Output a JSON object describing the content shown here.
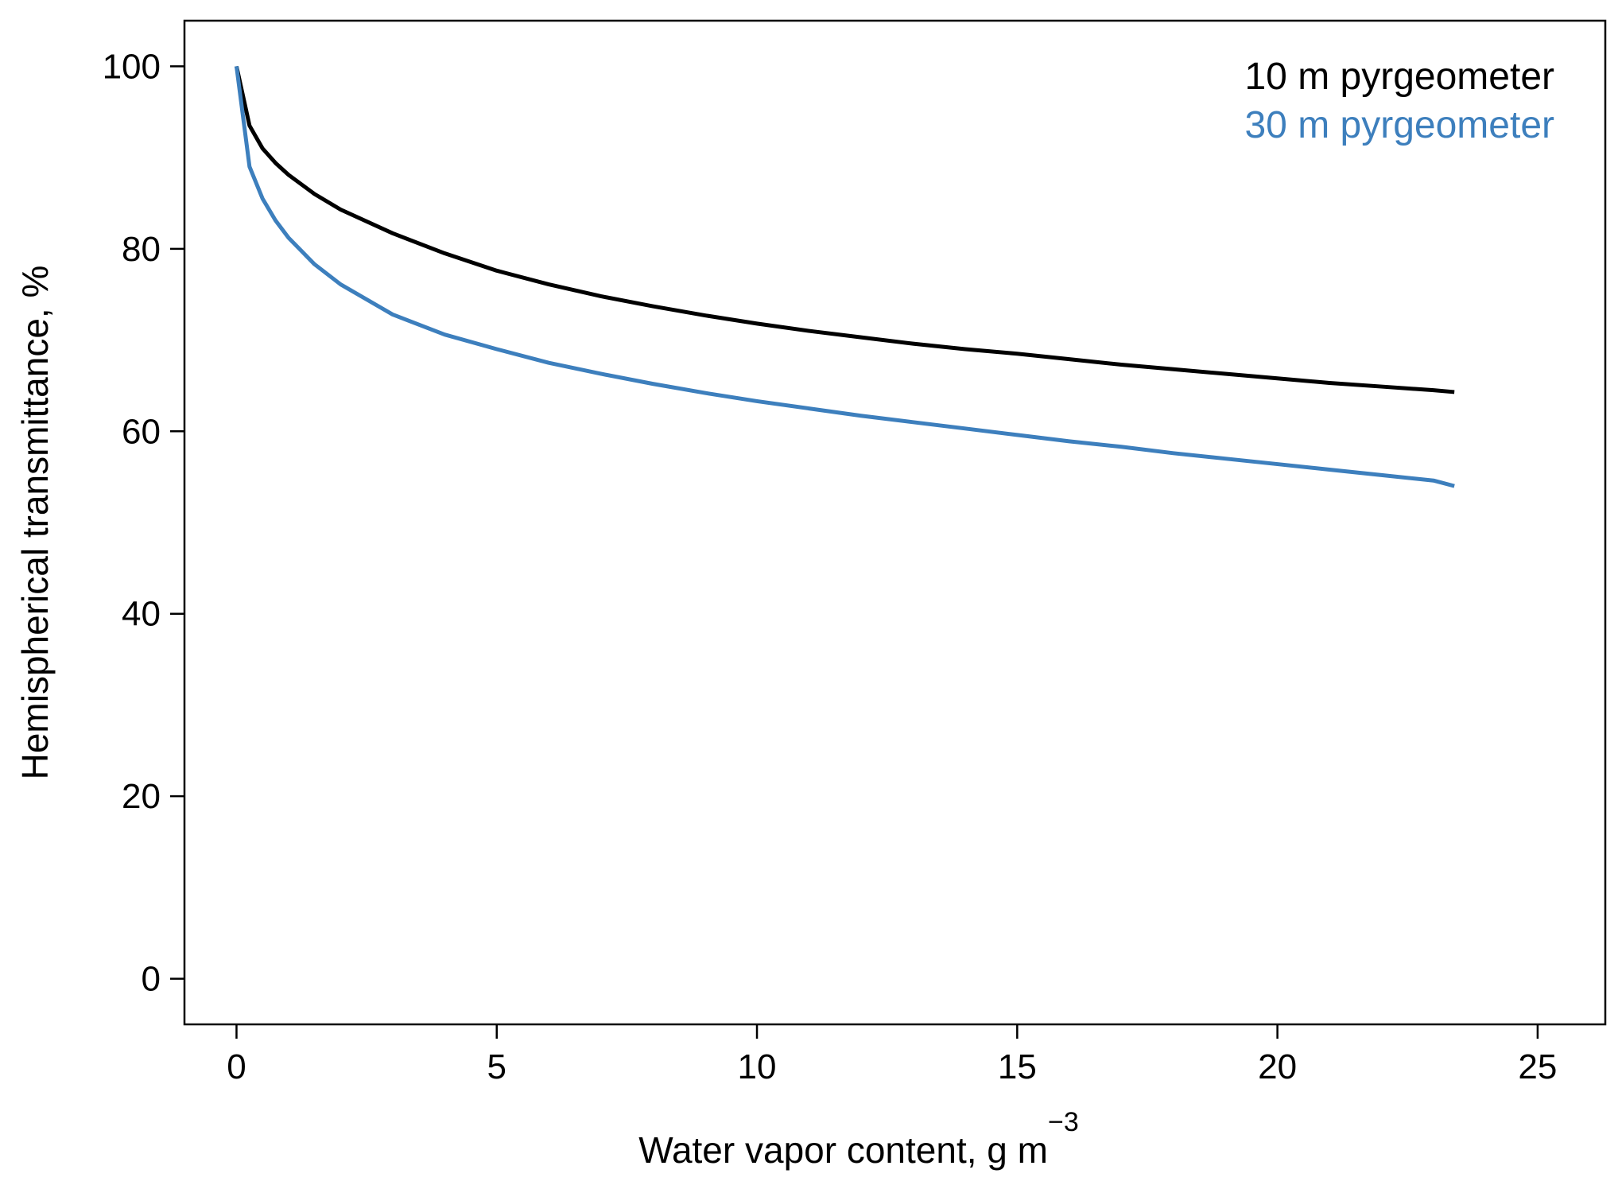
{
  "chart_data": {
    "type": "line",
    "title": "",
    "xlabel": "Water vapor content, g m",
    "xlabel_superscript": "−3",
    "ylabel": "Hemispherical transmittance, %",
    "xlim": [
      -1,
      26.3
    ],
    "ylim": [
      -5,
      105
    ],
    "x_ticks": [
      0,
      5,
      10,
      15,
      20,
      25
    ],
    "y_ticks": [
      0,
      20,
      40,
      60,
      80,
      100
    ],
    "x_tick_labels": [
      "0",
      "5",
      "10",
      "15",
      "20",
      "25"
    ],
    "y_tick_labels": [
      "0",
      "20",
      "40",
      "60",
      "80",
      "100"
    ],
    "grid": false,
    "legend_position": "top-right",
    "series": [
      {
        "name": "10 m pyrgeometer",
        "color": "#000000",
        "x": [
          0,
          0.25,
          0.5,
          0.75,
          1,
          1.5,
          2,
          3,
          4,
          5,
          6,
          7,
          8,
          9,
          10,
          11,
          12,
          13,
          14,
          15,
          16,
          17,
          18,
          19,
          20,
          21,
          22,
          23,
          23.4
        ],
        "y": [
          100,
          93.5,
          91.0,
          89.4,
          88.1,
          86.0,
          84.3,
          81.7,
          79.5,
          77.6,
          76.1,
          74.8,
          73.7,
          72.7,
          71.8,
          71.0,
          70.3,
          69.6,
          69.0,
          68.5,
          67.9,
          67.3,
          66.8,
          66.3,
          65.8,
          65.3,
          64.9,
          64.5,
          64.3
        ]
      },
      {
        "name": "30 m pyrgeometer",
        "color": "#3d7fbd",
        "x": [
          0,
          0.25,
          0.5,
          0.75,
          1,
          1.5,
          2,
          3,
          4,
          5,
          6,
          7,
          8,
          9,
          10,
          11,
          12,
          13,
          14,
          15,
          16,
          17,
          18,
          19,
          20,
          21,
          22,
          23,
          23.4
        ],
        "y": [
          100,
          89.0,
          85.5,
          83.1,
          81.2,
          78.3,
          76.1,
          72.8,
          70.6,
          69.0,
          67.5,
          66.3,
          65.2,
          64.2,
          63.3,
          62.5,
          61.7,
          61.0,
          60.3,
          59.6,
          58.9,
          58.3,
          57.6,
          57.0,
          56.4,
          55.8,
          55.2,
          54.6,
          54.0
        ]
      }
    ]
  }
}
